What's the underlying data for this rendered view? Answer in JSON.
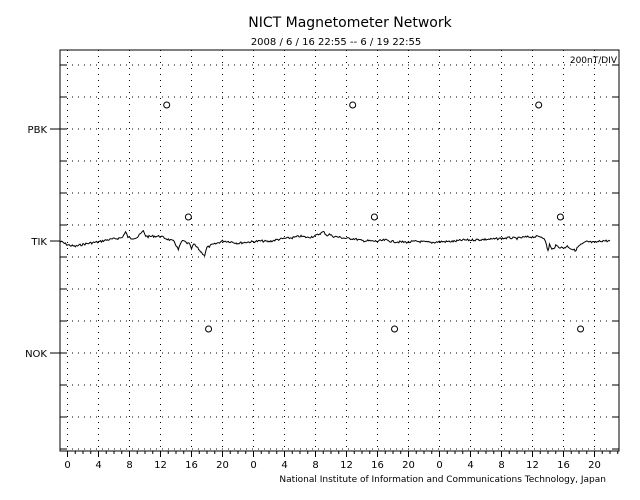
{
  "chart_data": {
    "type": "line",
    "title": "NICT Magnetometer Network",
    "subtitle": "2008 / 6 / 16   22:55 --  6 / 19   22:55",
    "scale_label": "200nT/DIV",
    "footer": "National Institute of Information and Communications Technology, Japan",
    "x_tick_labels": [
      "0",
      "4",
      "8",
      "12",
      "16",
      "20",
      "0",
      "4",
      "8",
      "12",
      "16",
      "20",
      "0",
      "4",
      "8",
      "12",
      "16",
      "20"
    ],
    "stations": [
      {
        "name": "PBK",
        "has_data": false,
        "markers": [
          {
            "type": "noon",
            "hour": 12.8
          },
          {
            "type": "noon",
            "hour": 36.8
          },
          {
            "type": "noon",
            "hour": 60.8
          }
        ]
      },
      {
        "name": "TIK",
        "has_data": true,
        "markers": [
          {
            "type": "noon",
            "hour": 15.6
          },
          {
            "type": "noon",
            "hour": 39.6
          },
          {
            "type": "noon",
            "hour": 63.6
          }
        ]
      },
      {
        "name": "NOK",
        "has_data": false,
        "markers": [
          {
            "type": "noon",
            "hour": 18.2
          },
          {
            "type": "noon",
            "hour": 42.2
          },
          {
            "type": "noon",
            "hour": 66.2
          }
        ]
      }
    ],
    "series": [
      {
        "station": "TIK",
        "unit": "nT",
        "x": [
          -1.0,
          0.0,
          1.0,
          2.0,
          3.0,
          4.0,
          5.0,
          6.0,
          7.0,
          7.5,
          7.8,
          8.2,
          9.0,
          9.8,
          10.1,
          10.4,
          11.0,
          12.0,
          13.0,
          13.8,
          14.3,
          14.7,
          15.0,
          15.3,
          15.7,
          16.0,
          16.3,
          16.8,
          17.3,
          17.7,
          18.0,
          18.3,
          18.6,
          19.0,
          20.0,
          21.0,
          22.0,
          23.0,
          24.0,
          25.0,
          26.0,
          27.0,
          28.0,
          29.0,
          30.0,
          31.0,
          32.0,
          33.0,
          33.5,
          33.8,
          34.2,
          35.0,
          36.0,
          37.0,
          38.0,
          39.0,
          40.0,
          41.0,
          42.0,
          43.0,
          44.0,
          45.0,
          46.0,
          47.0,
          48.0,
          49.0,
          50.0,
          51.0,
          52.0,
          53.0,
          54.0,
          55.0,
          56.0,
          57.0,
          58.0,
          59.0,
          60.0,
          61.0,
          61.5,
          61.8,
          62.0,
          62.2,
          62.5,
          63.0,
          63.5,
          64.0,
          64.5,
          65.0,
          65.5,
          66.0,
          67.0,
          68.0,
          69.0,
          70.0
        ],
        "y": [
          0,
          -24,
          -34,
          -21,
          -12,
          -6,
          6,
          13,
          20,
          55,
          25,
          16,
          23,
          63,
          32,
          27,
          30,
          29,
          10,
          -5,
          -55,
          -5,
          0,
          -10,
          -18,
          -48,
          -20,
          -45,
          -72,
          -90,
          -40,
          -35,
          -25,
          -20,
          0,
          -4,
          -14,
          -8,
          -4,
          0,
          -4,
          8,
          16,
          20,
          30,
          22,
          32,
          57,
          35,
          42,
          30,
          24,
          16,
          14,
          2,
          0,
          -2,
          6,
          -4,
          -6,
          -8,
          -2,
          -6,
          -10,
          -4,
          -4,
          -2,
          6,
          6,
          8,
          10,
          12,
          16,
          20,
          16,
          24,
          26,
          28,
          20,
          -28,
          -62,
          -20,
          -55,
          -30,
          -38,
          -44,
          -32,
          -48,
          -60,
          -30,
          -4,
          -10,
          2,
          0
        ]
      }
    ],
    "ylim_nT": [
      -200,
      200
    ],
    "grid": true,
    "legend": "none"
  }
}
